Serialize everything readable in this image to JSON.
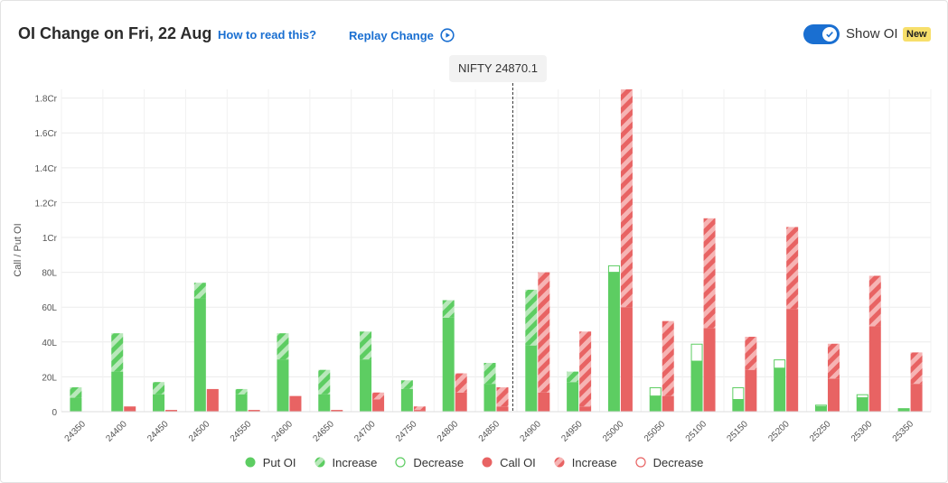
{
  "header": {
    "title": "OI Change on Fri, 22 Aug",
    "how_to_read": "How to read this?",
    "replay": "Replay Change",
    "toggle_label": "Show OI",
    "badge": "New"
  },
  "spot": {
    "label": "NIFTY 24870.1",
    "value": 24870.1
  },
  "colors": {
    "put": "#5dcd62",
    "put_light": "#b6e7b8",
    "call": "#e86363",
    "call_light": "#f4a5a5",
    "accent": "#1a6fd1",
    "badge": "#f7df6b"
  },
  "legend": [
    {
      "label": "Put OI",
      "kind": "put-solid"
    },
    {
      "label": "Increase",
      "kind": "put-increase"
    },
    {
      "label": "Decrease",
      "kind": "put-decrease"
    },
    {
      "label": "Call OI",
      "kind": "call-solid"
    },
    {
      "label": "Increase",
      "kind": "call-increase"
    },
    {
      "label": "Decrease",
      "kind": "call-decrease"
    }
  ],
  "chart_data": {
    "type": "bar",
    "ylabel": "Call / Put OI",
    "ylim": [
      0,
      18500000
    ],
    "y_ticks": [
      {
        "value": 0,
        "label": "0"
      },
      {
        "value": 2000000,
        "label": "20L"
      },
      {
        "value": 4000000,
        "label": "40L"
      },
      {
        "value": 6000000,
        "label": "60L"
      },
      {
        "value": 8000000,
        "label": "80L"
      },
      {
        "value": 10000000,
        "label": "1Cr"
      },
      {
        "value": 12000000,
        "label": "1.2Cr"
      },
      {
        "value": 14000000,
        "label": "1.4Cr"
      },
      {
        "value": 16000000,
        "label": "1.6Cr"
      },
      {
        "value": 18000000,
        "label": "1.8Cr"
      }
    ],
    "categories": [
      "24350",
      "24400",
      "24450",
      "24500",
      "24550",
      "24600",
      "24650",
      "24700",
      "24750",
      "24800",
      "24850",
      "24900",
      "24950",
      "25000",
      "25050",
      "25100",
      "25150",
      "25200",
      "25250",
      "25300",
      "25350"
    ],
    "series": [
      {
        "name": "Put OI",
        "base": [
          800000,
          2300000,
          1000000,
          6500000,
          1000000,
          3000000,
          1000000,
          3000000,
          1300000,
          5400000,
          1600000,
          3800000,
          1700000,
          8000000,
          900000,
          2900000,
          700000,
          2500000,
          300000,
          800000,
          200000
        ],
        "increase": [
          600000,
          2200000,
          700000,
          900000,
          300000,
          1500000,
          1400000,
          1600000,
          500000,
          1000000,
          1200000,
          3200000,
          600000,
          0,
          0,
          0,
          0,
          0,
          0,
          0,
          0
        ],
        "decrease": [
          0,
          0,
          0,
          0,
          0,
          0,
          0,
          0,
          0,
          0,
          0,
          0,
          0,
          400000,
          500000,
          1000000,
          700000,
          500000,
          100000,
          200000,
          0
        ]
      },
      {
        "name": "Call OI",
        "base": [
          0,
          300000,
          100000,
          1300000,
          100000,
          900000,
          100000,
          700000,
          100000,
          1100000,
          300000,
          1100000,
          300000,
          6000000,
          900000,
          4800000,
          2400000,
          5900000,
          1900000,
          4900000,
          1600000
        ],
        "increase": [
          0,
          0,
          0,
          0,
          0,
          0,
          0,
          400000,
          200000,
          1100000,
          1100000,
          6900000,
          4300000,
          12500000,
          4300000,
          6300000,
          1900000,
          4700000,
          2000000,
          2900000,
          1800000
        ],
        "decrease": [
          0,
          0,
          0,
          0,
          0,
          0,
          0,
          0,
          0,
          0,
          0,
          0,
          0,
          0,
          0,
          0,
          0,
          0,
          0,
          0,
          0
        ]
      }
    ]
  }
}
